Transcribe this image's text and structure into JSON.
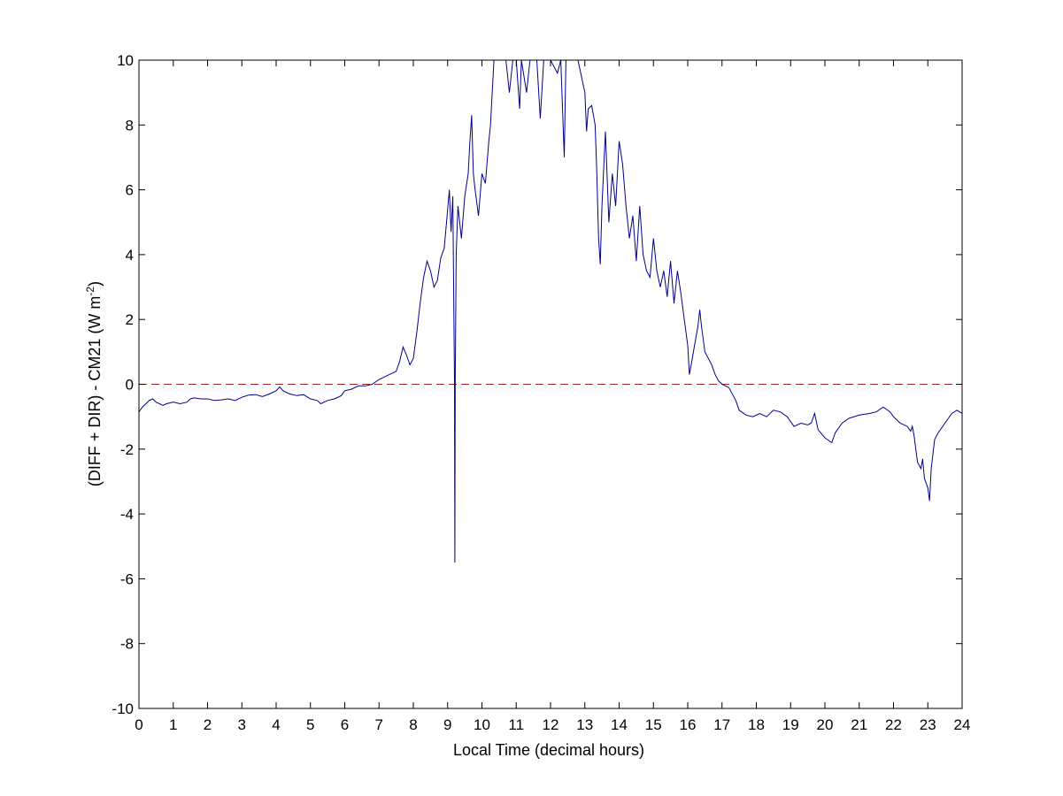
{
  "chart_data": {
    "type": "line",
    "title": "",
    "xlabel": "Local Time (decimal hours)",
    "ylabel": {
      "text": "(DIFF + DIR) - CM21 (W m",
      "superscript": "-2",
      "suffix": ")"
    },
    "xlim": [
      0,
      24
    ],
    "ylim": [
      -10,
      10
    ],
    "xticks": [
      0,
      1,
      2,
      3,
      4,
      5,
      6,
      7,
      8,
      9,
      10,
      11,
      12,
      13,
      14,
      15,
      16,
      17,
      18,
      19,
      20,
      21,
      22,
      23,
      24
    ],
    "yticks": [
      -10,
      -8,
      -6,
      -4,
      -2,
      0,
      2,
      4,
      6,
      8,
      10
    ],
    "grid": false,
    "legend": "none",
    "colors": {
      "series": "#00008b",
      "reference": "#b22222",
      "axes": "#000000"
    },
    "reference_line": {
      "y": 0,
      "style": "dashed"
    },
    "series": [
      {
        "points": [
          [
            0.0,
            -0.85
          ],
          [
            0.1,
            -0.7
          ],
          [
            0.2,
            -0.6
          ],
          [
            0.3,
            -0.5
          ],
          [
            0.4,
            -0.45
          ],
          [
            0.5,
            -0.55
          ],
          [
            0.6,
            -0.6
          ],
          [
            0.7,
            -0.65
          ],
          [
            0.8,
            -0.6
          ],
          [
            1.0,
            -0.55
          ],
          [
            1.2,
            -0.6
          ],
          [
            1.4,
            -0.55
          ],
          [
            1.5,
            -0.45
          ],
          [
            1.6,
            -0.42
          ],
          [
            1.8,
            -0.45
          ],
          [
            2.0,
            -0.45
          ],
          [
            2.2,
            -0.5
          ],
          [
            2.4,
            -0.48
          ],
          [
            2.6,
            -0.45
          ],
          [
            2.8,
            -0.5
          ],
          [
            3.0,
            -0.4
          ],
          [
            3.2,
            -0.33
          ],
          [
            3.4,
            -0.32
          ],
          [
            3.6,
            -0.38
          ],
          [
            3.8,
            -0.3
          ],
          [
            4.0,
            -0.2
          ],
          [
            4.1,
            -0.08
          ],
          [
            4.2,
            -0.2
          ],
          [
            4.4,
            -0.3
          ],
          [
            4.6,
            -0.35
          ],
          [
            4.8,
            -0.32
          ],
          [
            5.0,
            -0.45
          ],
          [
            5.2,
            -0.5
          ],
          [
            5.3,
            -0.6
          ],
          [
            5.5,
            -0.5
          ],
          [
            5.7,
            -0.45
          ],
          [
            5.9,
            -0.35
          ],
          [
            6.0,
            -0.2
          ],
          [
            6.2,
            -0.15
          ],
          [
            6.4,
            -0.05
          ],
          [
            6.6,
            -0.05
          ],
          [
            6.8,
            0.0
          ],
          [
            7.0,
            0.15
          ],
          [
            7.2,
            0.25
          ],
          [
            7.4,
            0.35
          ],
          [
            7.5,
            0.4
          ],
          [
            7.6,
            0.7
          ],
          [
            7.7,
            1.15
          ],
          [
            7.8,
            0.9
          ],
          [
            7.9,
            0.6
          ],
          [
            8.0,
            0.8
          ],
          [
            8.1,
            1.6
          ],
          [
            8.2,
            2.5
          ],
          [
            8.3,
            3.3
          ],
          [
            8.4,
            3.8
          ],
          [
            8.5,
            3.5
          ],
          [
            8.6,
            3.0
          ],
          [
            8.7,
            3.2
          ],
          [
            8.8,
            3.9
          ],
          [
            8.9,
            4.2
          ],
          [
            9.0,
            5.4
          ],
          [
            9.05,
            6.0
          ],
          [
            9.1,
            4.7
          ],
          [
            9.15,
            5.8
          ],
          [
            9.2,
            0.0
          ],
          [
            9.21,
            -5.5
          ],
          [
            9.22,
            0.0
          ],
          [
            9.25,
            4.0
          ],
          [
            9.3,
            5.5
          ],
          [
            9.4,
            4.5
          ],
          [
            9.5,
            5.8
          ],
          [
            9.6,
            6.5
          ],
          [
            9.65,
            7.5
          ],
          [
            9.7,
            8.3
          ],
          [
            9.75,
            6.5
          ],
          [
            9.8,
            6.0
          ],
          [
            9.9,
            5.2
          ],
          [
            10.0,
            6.5
          ],
          [
            10.1,
            6.2
          ],
          [
            10.2,
            7.5
          ],
          [
            10.25,
            8.0
          ],
          [
            10.3,
            9.0
          ],
          [
            10.35,
            10.0
          ],
          [
            10.5,
            10.0
          ],
          [
            10.6,
            10.0
          ],
          [
            10.7,
            10.0
          ],
          [
            10.8,
            9.0
          ],
          [
            10.9,
            10.0
          ],
          [
            11.0,
            10.0
          ],
          [
            11.1,
            8.5
          ],
          [
            11.15,
            10.0
          ],
          [
            11.3,
            9.0
          ],
          [
            11.4,
            10.0
          ],
          [
            11.6,
            10.0
          ],
          [
            11.7,
            8.2
          ],
          [
            11.8,
            10.0
          ],
          [
            12.0,
            10.0
          ],
          [
            12.2,
            9.6
          ],
          [
            12.3,
            10.0
          ],
          [
            12.4,
            7.0
          ],
          [
            12.45,
            10.0
          ],
          [
            12.6,
            10.0
          ],
          [
            12.8,
            10.0
          ],
          [
            13.0,
            9.0
          ],
          [
            13.05,
            7.8
          ],
          [
            13.1,
            8.5
          ],
          [
            13.2,
            8.6
          ],
          [
            13.3,
            8.0
          ],
          [
            13.35,
            6.5
          ],
          [
            13.4,
            4.5
          ],
          [
            13.45,
            3.7
          ],
          [
            13.5,
            5.5
          ],
          [
            13.6,
            7.8
          ],
          [
            13.7,
            5.0
          ],
          [
            13.8,
            6.5
          ],
          [
            13.9,
            5.5
          ],
          [
            14.0,
            7.5
          ],
          [
            14.1,
            6.8
          ],
          [
            14.2,
            5.5
          ],
          [
            14.3,
            4.5
          ],
          [
            14.4,
            5.2
          ],
          [
            14.5,
            3.8
          ],
          [
            14.6,
            5.5
          ],
          [
            14.7,
            4.0
          ],
          [
            14.8,
            3.5
          ],
          [
            14.9,
            3.3
          ],
          [
            15.0,
            4.5
          ],
          [
            15.1,
            3.5
          ],
          [
            15.2,
            3.0
          ],
          [
            15.3,
            3.5
          ],
          [
            15.4,
            2.7
          ],
          [
            15.5,
            3.8
          ],
          [
            15.6,
            2.5
          ],
          [
            15.7,
            3.5
          ],
          [
            15.8,
            2.8
          ],
          [
            15.9,
            2.0
          ],
          [
            16.0,
            1.2
          ],
          [
            16.05,
            0.3
          ],
          [
            16.1,
            0.6
          ],
          [
            16.2,
            1.2
          ],
          [
            16.3,
            1.8
          ],
          [
            16.35,
            2.3
          ],
          [
            16.4,
            1.8
          ],
          [
            16.5,
            1.0
          ],
          [
            16.6,
            0.8
          ],
          [
            16.7,
            0.6
          ],
          [
            16.8,
            0.3
          ],
          [
            16.9,
            0.1
          ],
          [
            17.0,
            0.0
          ],
          [
            17.2,
            -0.1
          ],
          [
            17.4,
            -0.5
          ],
          [
            17.5,
            -0.8
          ],
          [
            17.7,
            -0.95
          ],
          [
            17.9,
            -1.0
          ],
          [
            18.1,
            -0.9
          ],
          [
            18.3,
            -1.0
          ],
          [
            18.5,
            -0.8
          ],
          [
            18.7,
            -0.85
          ],
          [
            18.9,
            -1.0
          ],
          [
            19.1,
            -1.3
          ],
          [
            19.3,
            -1.2
          ],
          [
            19.5,
            -1.25
          ],
          [
            19.6,
            -1.2
          ],
          [
            19.7,
            -0.9
          ],
          [
            19.8,
            -1.4
          ],
          [
            20.0,
            -1.65
          ],
          [
            20.2,
            -1.8
          ],
          [
            20.3,
            -1.5
          ],
          [
            20.5,
            -1.2
          ],
          [
            20.7,
            -1.05
          ],
          [
            21.0,
            -0.95
          ],
          [
            21.3,
            -0.9
          ],
          [
            21.5,
            -0.85
          ],
          [
            21.7,
            -0.7
          ],
          [
            21.9,
            -0.85
          ],
          [
            22.0,
            -1.0
          ],
          [
            22.2,
            -1.2
          ],
          [
            22.4,
            -1.3
          ],
          [
            22.5,
            -1.45
          ],
          [
            22.55,
            -1.3
          ],
          [
            22.6,
            -1.6
          ],
          [
            22.7,
            -2.4
          ],
          [
            22.8,
            -2.6
          ],
          [
            22.85,
            -2.3
          ],
          [
            22.9,
            -2.9
          ],
          [
            23.0,
            -3.2
          ],
          [
            23.05,
            -3.6
          ],
          [
            23.1,
            -2.6
          ],
          [
            23.2,
            -1.7
          ],
          [
            23.3,
            -1.5
          ],
          [
            23.5,
            -1.2
          ],
          [
            23.7,
            -0.9
          ],
          [
            23.85,
            -0.8
          ],
          [
            24.0,
            -0.9
          ]
        ]
      }
    ]
  }
}
